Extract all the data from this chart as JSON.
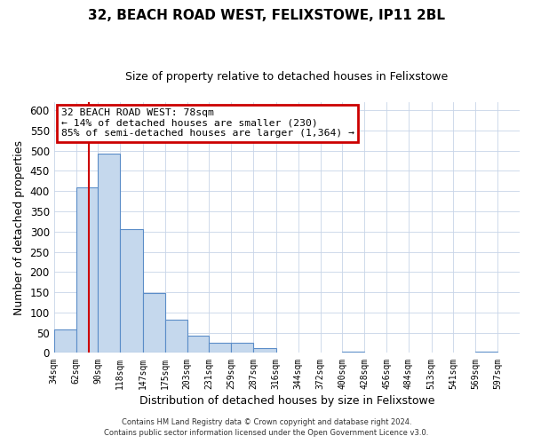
{
  "title": "32, BEACH ROAD WEST, FELIXSTOWE, IP11 2BL",
  "subtitle": "Size of property relative to detached houses in Felixstowe",
  "xlabel": "Distribution of detached houses by size in Felixstowe",
  "ylabel": "Number of detached properties",
  "bar_left_edges": [
    34,
    62,
    90,
    118,
    147,
    175,
    203,
    231,
    259,
    287,
    316,
    344,
    372,
    400,
    428,
    456,
    484,
    513,
    541,
    569
  ],
  "bar_widths": [
    28,
    28,
    28,
    29,
    28,
    28,
    28,
    28,
    28,
    29,
    28,
    28,
    28,
    28,
    28,
    28,
    29,
    28,
    28,
    28
  ],
  "bar_heights": [
    57,
    410,
    493,
    306,
    149,
    82,
    43,
    26,
    26,
    11,
    0,
    0,
    0,
    3,
    0,
    0,
    0,
    0,
    0,
    4
  ],
  "tick_labels": [
    "34sqm",
    "62sqm",
    "90sqm",
    "118sqm",
    "147sqm",
    "175sqm",
    "203sqm",
    "231sqm",
    "259sqm",
    "287sqm",
    "316sqm",
    "344sqm",
    "372sqm",
    "400sqm",
    "428sqm",
    "456sqm",
    "484sqm",
    "513sqm",
    "541sqm",
    "569sqm",
    "597sqm"
  ],
  "ylim": [
    0,
    620
  ],
  "yticks": [
    0,
    50,
    100,
    150,
    200,
    250,
    300,
    350,
    400,
    450,
    500,
    550,
    600
  ],
  "bar_color": "#c5d8ed",
  "bar_edge_color": "#5b8dc8",
  "vline_x": 78,
  "vline_color": "#cc0000",
  "annotation_title": "32 BEACH ROAD WEST: 78sqm",
  "annotation_line1": "← 14% of detached houses are smaller (230)",
  "annotation_line2": "85% of semi-detached houses are larger (1,364) →",
  "annotation_box_color": "#cc0000",
  "bg_color": "#ffffff",
  "grid_color": "#c8d4e8",
  "footer1": "Contains HM Land Registry data © Crown copyright and database right 2024.",
  "footer2": "Contains public sector information licensed under the Open Government Licence v3.0.",
  "xmin": 34,
  "xmax": 625
}
